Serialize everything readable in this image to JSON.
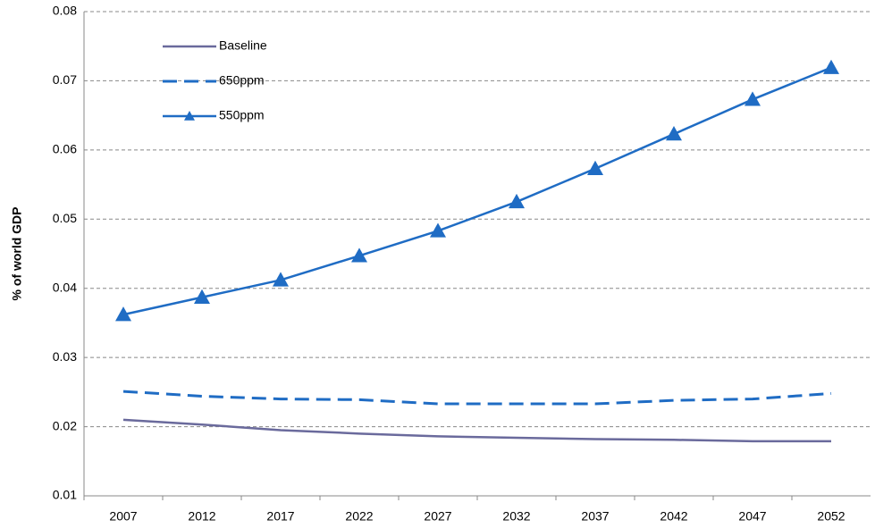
{
  "chart_data": {
    "type": "line",
    "y_label": "% of world GDP",
    "categories": [
      "2007",
      "2012",
      "2017",
      "2022",
      "2027",
      "2032",
      "2037",
      "2042",
      "2047",
      "2052"
    ],
    "series": [
      {
        "name": "Baseline",
        "color": "#6a6a9c",
        "dash": false,
        "marker": null,
        "values": [
          0.021,
          0.0203,
          0.0195,
          0.019,
          0.0186,
          0.0184,
          0.0182,
          0.0181,
          0.0179,
          0.0179
        ]
      },
      {
        "name": "650ppm",
        "color": "#1f6cc4",
        "dash": true,
        "marker": null,
        "values": [
          0.0251,
          0.0244,
          0.024,
          0.0239,
          0.0233,
          0.0233,
          0.0233,
          0.0238,
          0.024,
          0.0248
        ]
      },
      {
        "name": "550ppm",
        "color": "#1f6cc4",
        "dash": false,
        "marker": "triangle",
        "values": [
          0.0362,
          0.0387,
          0.0412,
          0.0447,
          0.0483,
          0.0525,
          0.0573,
          0.0623,
          0.0673,
          0.0719
        ]
      }
    ],
    "ylim": [
      0.01,
      0.08
    ],
    "yticks": [
      0.01,
      0.02,
      0.03,
      0.04,
      0.05,
      0.06,
      0.07,
      0.08
    ],
    "grid": true,
    "legend": "top-left"
  }
}
